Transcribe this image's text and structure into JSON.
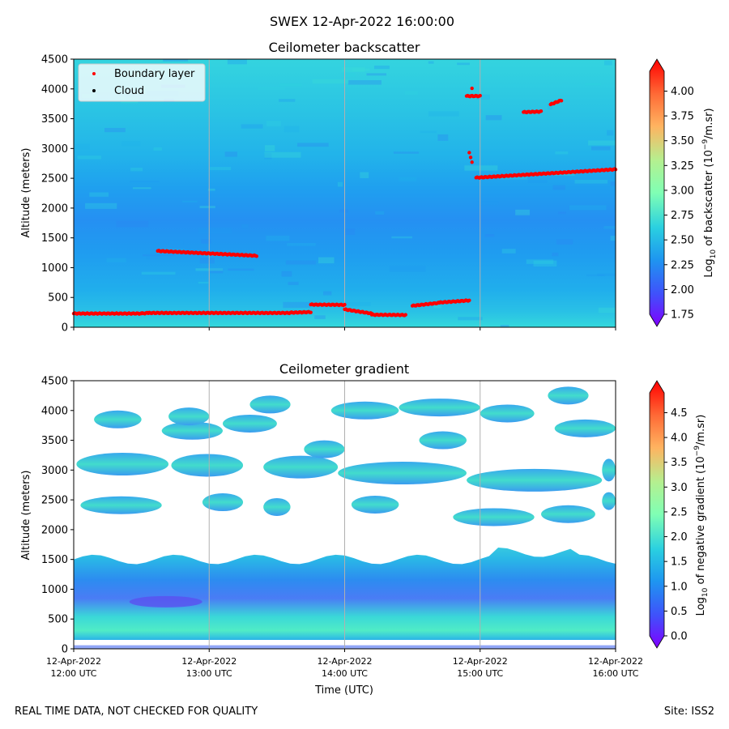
{
  "suptitle": "SWEX 12-Apr-2022 16:00:00",
  "footer_left": "REAL TIME DATA, NOT CHECKED FOR QUALITY",
  "footer_right": "Site: ISS2",
  "xlabel": "Time (UTC)",
  "x_ticks": [
    {
      "hours": 0,
      "date": "12-Apr-2022",
      "time": "12:00 UTC"
    },
    {
      "hours": 1,
      "date": "12-Apr-2022",
      "time": "13:00 UTC"
    },
    {
      "hours": 2,
      "date": "12-Apr-2022",
      "time": "14:00 UTC"
    },
    {
      "hours": 3,
      "date": "12-Apr-2022",
      "time": "15:00 UTC"
    },
    {
      "hours": 4,
      "date": "12-Apr-2022",
      "time": "16:00 UTC"
    }
  ],
  "chart_data": [
    {
      "type": "heatmap",
      "title": "Ceilometer backscatter",
      "xlabel": "",
      "ylabel": "Altitude (meters)",
      "xlim_hours": [
        0,
        4
      ],
      "ylim": [
        0,
        4500
      ],
      "yticks": [
        0,
        500,
        1000,
        1500,
        2000,
        2500,
        3000,
        3500,
        4000,
        4500
      ],
      "colorbar": {
        "label": "Log10 of backscatter (10⁻⁹/m.sr)",
        "label_base": "Log",
        "label_sub": "10",
        "label_mid": " of backscatter (10",
        "label_sup": "−9",
        "label_end": "/m.sr)",
        "range": [
          1.75,
          4.2
        ],
        "ticks": [
          "1.75",
          "2.00",
          "2.25",
          "2.50",
          "2.75",
          "3.00",
          "3.25",
          "3.50",
          "3.75",
          "4.00"
        ],
        "colormap": "rainbow"
      },
      "legend": {
        "placement": "top-left",
        "entries": [
          {
            "label": "Boundary layer",
            "color": "#ff0000"
          },
          {
            "label": "Cloud",
            "color": "#000000"
          }
        ]
      },
      "boundary_layer": [
        {
          "x": [
            0.0,
            0.5
          ],
          "y": [
            230,
            230
          ]
        },
        {
          "x": [
            0.5,
            0.55
          ],
          "y": [
            230,
            240
          ]
        },
        {
          "x": [
            0.55,
            1.6
          ],
          "y": [
            240,
            240
          ]
        },
        {
          "x": [
            1.6,
            1.75
          ],
          "y": [
            245,
            255
          ]
        },
        {
          "x": [
            1.75,
            2.0
          ],
          "y": [
            380,
            375
          ]
        },
        {
          "x": [
            2.0,
            2.2
          ],
          "y": [
            300,
            230
          ]
        },
        {
          "x": [
            2.2,
            2.45
          ],
          "y": [
            210,
            205
          ]
        },
        {
          "x": [
            2.5,
            2.7
          ],
          "y": [
            360,
            410
          ]
        },
        {
          "x": [
            2.7,
            2.92
          ],
          "y": [
            415,
            450
          ]
        },
        {
          "x": [
            0.62,
            1.35
          ],
          "y": [
            1280,
            1200
          ]
        },
        {
          "x": [
            2.9,
            3.0
          ],
          "y": [
            3880,
            3880
          ]
        },
        {
          "x": [
            2.97,
            4.0
          ],
          "y": [
            2510,
            2650
          ]
        },
        {
          "x": [
            3.32,
            3.45
          ],
          "y": [
            3610,
            3620
          ]
        },
        {
          "x": [
            3.52,
            3.6
          ],
          "y": [
            3740,
            3810
          ]
        }
      ],
      "boundary_layer_points": [
        {
          "x": 2.94,
          "y": 4010
        },
        {
          "x": 2.92,
          "y": 2930
        },
        {
          "x": 2.93,
          "y": 2850
        },
        {
          "x": 2.94,
          "y": 2770
        }
      ]
    },
    {
      "type": "heatmap",
      "title": "Ceilometer gradient",
      "xlabel": "Time (UTC)",
      "ylabel": "Altitude (meters)",
      "xlim_hours": [
        0,
        4
      ],
      "ylim": [
        0,
        4500
      ],
      "yticks": [
        0,
        500,
        1000,
        1500,
        2000,
        2500,
        3000,
        3500,
        4000,
        4500
      ],
      "colorbar": {
        "label": "Log10 of negative gradient (10⁻⁹/m.sr)",
        "label_base": "Log",
        "label_sub": "10",
        "label_mid": " of negative gradient (10",
        "label_sup": "−9",
        "label_end": "/m.sr)",
        "range": [
          0.0,
          4.9
        ],
        "ticks": [
          "0.0",
          "0.5",
          "1.0",
          "1.5",
          "2.0",
          "2.5",
          "3.0",
          "3.5",
          "4.0",
          "4.5"
        ],
        "colormap": "rainbow"
      },
      "layers": [
        {
          "name": "lower boundary layer",
          "alt_range": [
            150,
            1600
          ]
        },
        {
          "name": "layer 2400 m",
          "alt_range": [
            2200,
            2700
          ]
        },
        {
          "name": "layer 3000 m",
          "alt_range": [
            2850,
            3300
          ]
        },
        {
          "name": "layer 3700 m",
          "alt_range": [
            3450,
            4400
          ]
        }
      ]
    }
  ]
}
